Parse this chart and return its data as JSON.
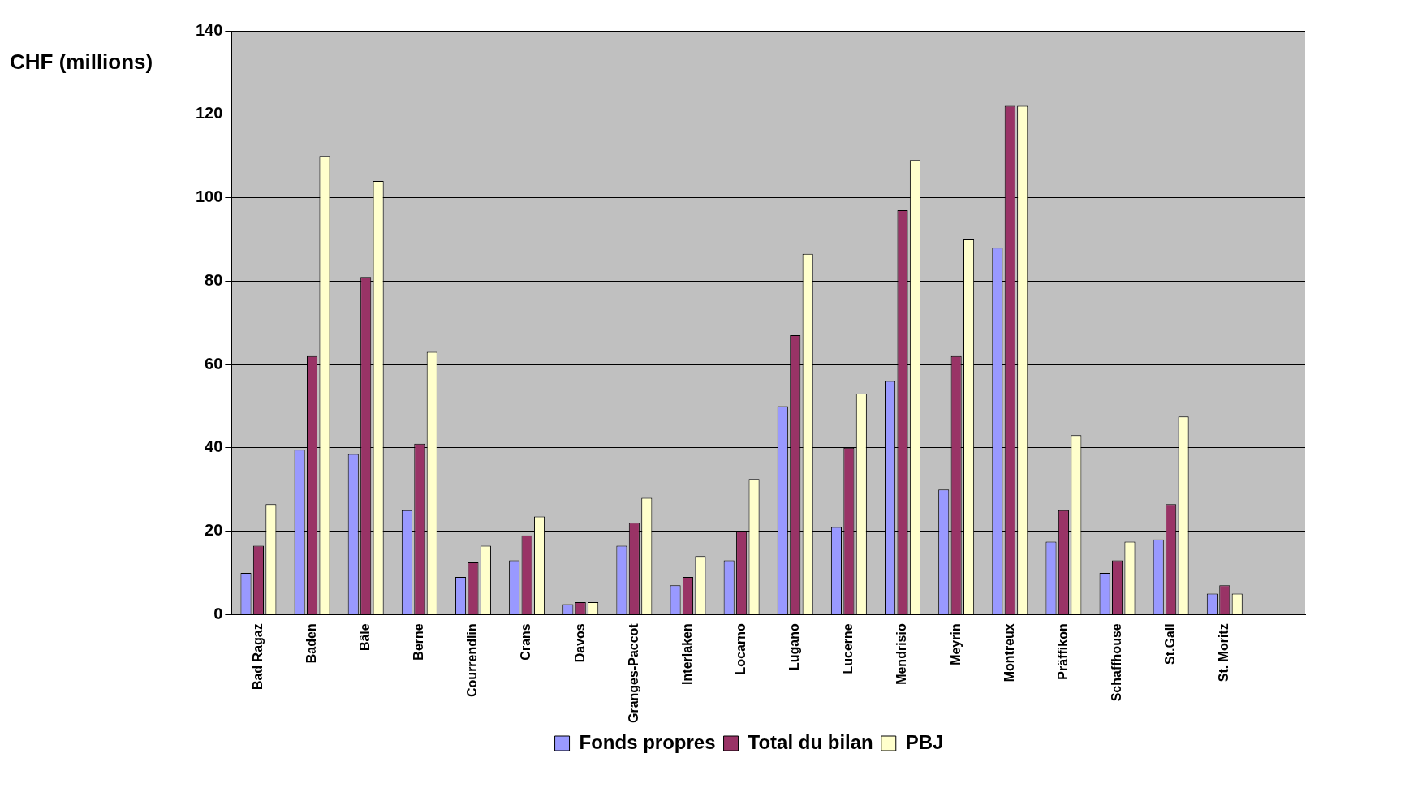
{
  "chart_data": {
    "type": "bar",
    "ylabel": "CHF (millions)",
    "categories": [
      "Bad Ragaz",
      "Baden",
      "Bâle",
      "Berne",
      "Courrendlin",
      "Crans",
      "Davos",
      "Granges-Paccot",
      "Interlaken",
      "Locarno",
      "Lugano",
      "Lucerne",
      "Mendrisio",
      "Meyrin",
      "Montreux",
      "Präffikon",
      "Schaffhouse",
      "St.Gall",
      "St. Moritz",
      null
    ],
    "series": [
      {
        "name": "Fonds propres",
        "color": "#9999ff",
        "values": [
          10,
          39.5,
          38.5,
          25,
          9,
          13,
          2.5,
          16.5,
          7,
          13,
          50,
          21,
          56,
          30,
          88,
          17.5,
          10,
          18,
          5,
          null
        ]
      },
      {
        "name": "Total du bilan",
        "color": "#993366",
        "values": [
          16.5,
          62,
          81,
          41,
          12.5,
          19,
          3,
          22,
          9,
          20,
          67,
          40,
          97,
          62,
          122,
          25,
          13,
          26.5,
          7,
          null
        ]
      },
      {
        "name": "PBJ",
        "color": "#ffffcc",
        "values": [
          26.5,
          110,
          104,
          63,
          16.5,
          23.5,
          3,
          28,
          14,
          32.5,
          86.5,
          53,
          109,
          90,
          122,
          43,
          17.5,
          47.5,
          5,
          null
        ]
      }
    ],
    "ylim": [
      0,
      140
    ],
    "yticks": [
      0,
      20,
      40,
      60,
      80,
      100,
      120,
      140
    ],
    "grid": "y",
    "legend": "bottom"
  }
}
